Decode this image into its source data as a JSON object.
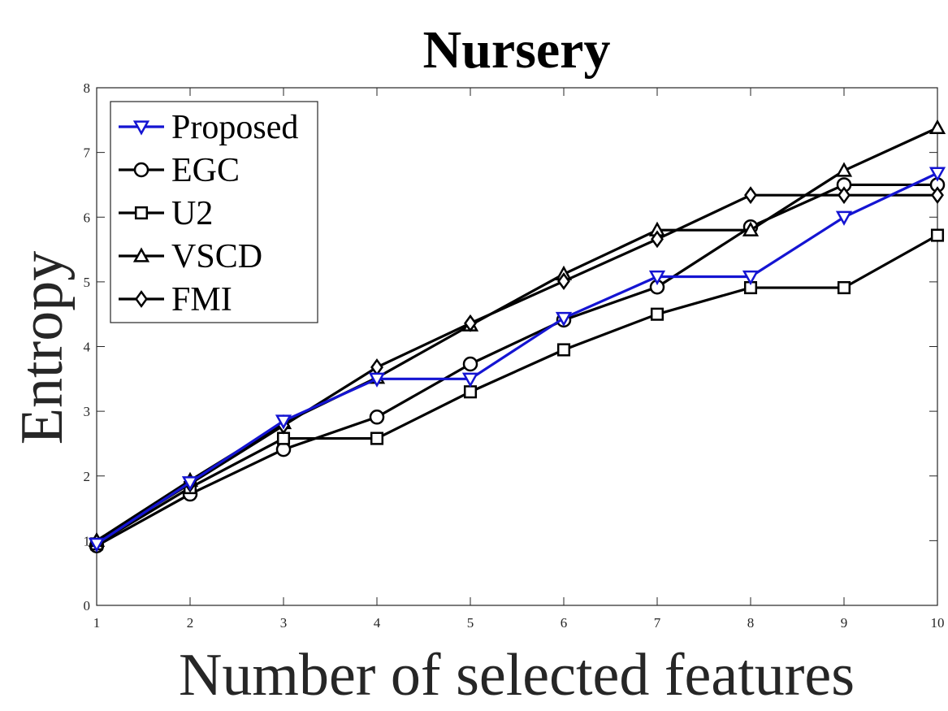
{
  "chart_data": {
    "type": "line",
    "title": "Nursery",
    "xlabel": "Number of selected features",
    "ylabel": "Entropy",
    "xlim": [
      1,
      10
    ],
    "ylim": [
      0,
      8
    ],
    "xticks": [
      "1",
      "2",
      "3",
      "4",
      "5",
      "6",
      "7",
      "8",
      "9",
      "10"
    ],
    "yticks": [
      "0",
      "1",
      "2",
      "3",
      "4",
      "5",
      "6",
      "7",
      "8"
    ],
    "x": [
      1,
      2,
      3,
      4,
      5,
      6,
      7,
      8,
      9,
      10
    ],
    "grid": false,
    "legend_position": "top-left",
    "series": [
      {
        "name": "Proposed",
        "marker": "triangle-down",
        "color": "#1414d2",
        "values": [
          0.95,
          1.9,
          2.85,
          3.5,
          3.5,
          4.44,
          5.08,
          5.08,
          6.0,
          6.68
        ]
      },
      {
        "name": "EGC",
        "marker": "circle",
        "color": "#000000",
        "values": [
          0.92,
          1.72,
          2.41,
          2.91,
          3.73,
          4.41,
          4.92,
          5.85,
          6.5,
          6.5
        ]
      },
      {
        "name": "U2",
        "marker": "square",
        "color": "#000000",
        "values": [
          0.95,
          1.82,
          2.58,
          2.58,
          3.3,
          3.95,
          4.5,
          4.91,
          4.91,
          5.72
        ]
      },
      {
        "name": "VSCD",
        "marker": "triangle-up",
        "color": "#000000",
        "values": [
          1.0,
          1.93,
          2.82,
          3.52,
          4.33,
          5.12,
          5.8,
          5.8,
          6.72,
          7.38
        ]
      },
      {
        "name": "FMI",
        "marker": "diamond",
        "color": "#000000",
        "values": [
          0.98,
          1.88,
          2.78,
          3.68,
          4.36,
          5.01,
          5.66,
          6.34,
          6.34,
          6.34
        ]
      }
    ]
  }
}
